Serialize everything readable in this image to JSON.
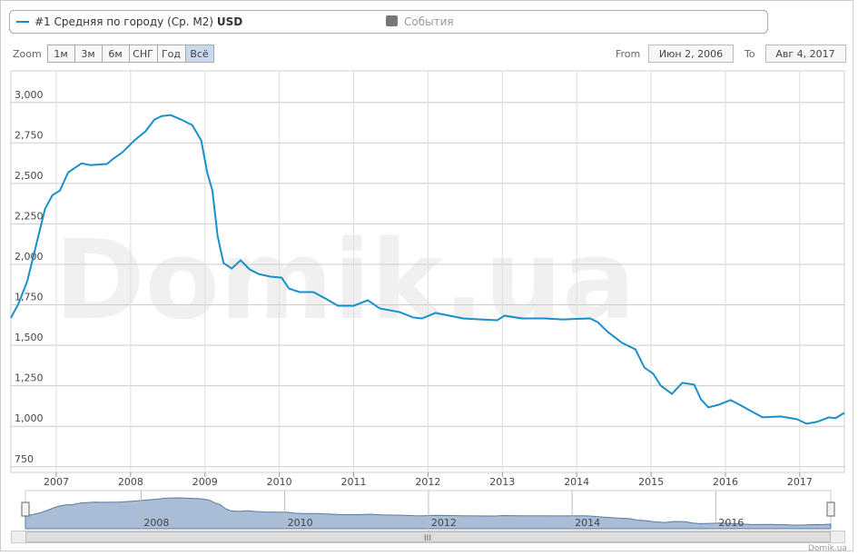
{
  "chart_data": {
    "type": "line",
    "legend_name": "#1 Средняя по городу (Ср. М2)",
    "currency": "USD",
    "events_legend": "События",
    "zoom_label": "Zoom",
    "zoom_buttons": [
      "1м",
      "3м",
      "6м",
      "СНГ",
      "Год",
      "Всё"
    ],
    "zoom_selected": 5,
    "from_label": "From",
    "from_date": "Июн 2, 2006",
    "to_label": "To",
    "to_date": "Авг 4, 2017",
    "watermark": "Domik.ua",
    "credit": "Domik.ua",
    "series": [
      {
        "name": "#1 Средняя по городу (Ср. М2) USD",
        "color": "#1a8fc9",
        "x": [
          2006.39,
          2006.49,
          2006.61,
          2006.73,
          2006.85,
          2006.95,
          2007.05,
          2007.16,
          2007.34,
          2007.46,
          2007.68,
          2007.77,
          2007.89,
          2008.05,
          2008.2,
          2008.32,
          2008.42,
          2008.54,
          2008.68,
          2008.83,
          2008.95,
          2009.03,
          2009.1,
          2009.17,
          2009.25,
          2009.36,
          2009.48,
          2009.6,
          2009.72,
          2009.88,
          2010.03,
          2010.13,
          2010.27,
          2010.46,
          2010.64,
          2010.79,
          2011.0,
          2011.19,
          2011.35,
          2011.62,
          2011.8,
          2011.92,
          2012.1,
          2012.29,
          2012.47,
          2012.71,
          2012.93,
          2013.03,
          2013.26,
          2013.57,
          2013.81,
          2014.18,
          2014.28,
          2014.42,
          2014.61,
          2014.79,
          2014.91,
          2015.03,
          2015.13,
          2015.28,
          2015.42,
          2015.58,
          2015.67,
          2015.77,
          2015.91,
          2016.07,
          2016.19,
          2016.32,
          2016.5,
          2016.74,
          2016.96,
          2017.09,
          2017.23,
          2017.39,
          2017.48,
          2017.6
        ],
        "values": [
          1670,
          1755,
          1896,
          2120,
          2344,
          2428,
          2456,
          2568,
          2624,
          2613,
          2620,
          2653,
          2692,
          2765,
          2821,
          2894,
          2916,
          2922,
          2894,
          2860,
          2765,
          2568,
          2456,
          2176,
          2008,
          1974,
          2025,
          1969,
          1941,
          1924,
          1918,
          1851,
          1829,
          1829,
          1784,
          1744,
          1744,
          1778,
          1728,
          1705,
          1672,
          1666,
          1700,
          1683,
          1666,
          1660,
          1655,
          1683,
          1666,
          1666,
          1660,
          1666,
          1644,
          1582,
          1515,
          1475,
          1363,
          1324,
          1251,
          1200,
          1268,
          1257,
          1167,
          1117,
          1133,
          1162,
          1133,
          1100,
          1055,
          1061,
          1044,
          1016,
          1027,
          1055,
          1050,
          1083
        ]
      }
    ],
    "xlim": [
      2006.39,
      2017.6
    ],
    "xticks": [
      2007,
      2008,
      2009,
      2010,
      2011,
      2012,
      2013,
      2014,
      2015,
      2016,
      2017
    ],
    "ylim": [
      715,
      3195
    ],
    "yticks": [
      750,
      {
        "value": 1000,
        "label": "1,000"
      },
      {
        "value": 1250,
        "label": "1,250"
      },
      {
        "value": 1500,
        "label": "1,500"
      },
      {
        "value": 1750,
        "label": "1,750"
      },
      {
        "value": 2000,
        "label": "2,000"
      },
      {
        "value": 2250,
        "label": "2,250"
      },
      {
        "value": 2500,
        "label": "2,500"
      },
      {
        "value": 2750,
        "label": "2,750"
      },
      {
        "value": 3000,
        "label": "3,000"
      }
    ],
    "navigator_xticks": [
      2008,
      2010,
      2012,
      2014,
      2016
    ],
    "grid": true
  }
}
